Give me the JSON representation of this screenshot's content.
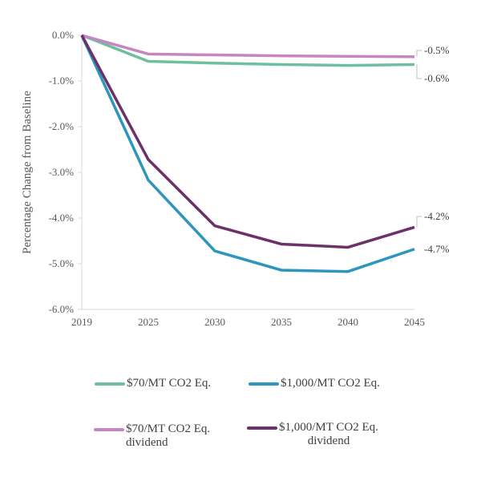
{
  "chart_data": {
    "type": "line",
    "title": "",
    "xlabel": "",
    "ylabel": "Percentage Change from Baseline",
    "x": [
      "2019",
      "2025",
      "2030",
      "2035",
      "2040",
      "2045"
    ],
    "ylim": [
      -6.0,
      0.0
    ],
    "yticks": [
      0.0,
      -1.0,
      -2.0,
      -3.0,
      -4.0,
      -5.0,
      -6.0
    ],
    "ytick_labels": [
      "0.0%",
      "-1.0%",
      "-2.0%",
      "-3.0%",
      "-4.0%",
      "-5.0%",
      "-6.0%"
    ],
    "grid": false,
    "legend_position": "bottom",
    "series": [
      {
        "name": "$70/MT CO2 Eq.",
        "color": "#6dbf9e",
        "values": [
          0.0,
          -0.57,
          -0.61,
          -0.64,
          -0.66,
          -0.64
        ],
        "end_label": "-0.6%"
      },
      {
        "name": "$1,000/MT CO2 Eq.",
        "color": "#2e95bd",
        "values": [
          0.0,
          -3.17,
          -4.72,
          -5.14,
          -5.17,
          -4.68
        ],
        "end_label": "-4.7%"
      },
      {
        "name": "$70/MT CO2 Eq.\ndividend",
        "color": "#c586c1",
        "values": [
          0.0,
          -0.41,
          -0.43,
          -0.45,
          -0.46,
          -0.47
        ],
        "end_label": "-0.5%"
      },
      {
        "name": "$1,000/MT CO2 Eq.\ndividend",
        "color": "#6d3169",
        "values": [
          0.0,
          -2.72,
          -4.17,
          -4.57,
          -4.64,
          -4.2
        ],
        "end_label": "-4.2%"
      }
    ]
  }
}
